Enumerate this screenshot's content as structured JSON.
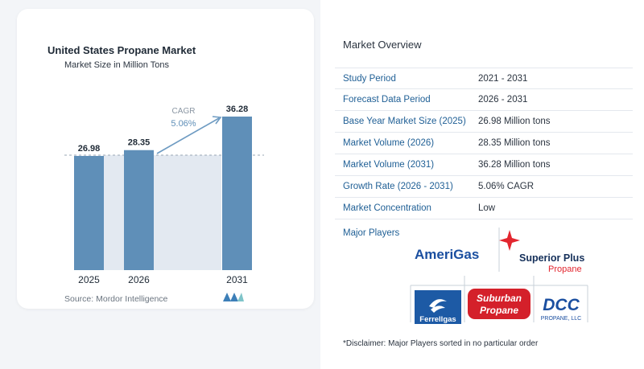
{
  "chart_data": {
    "type": "bar",
    "title": "United States Propane Market",
    "subtitle": "Market Size in Million Tons",
    "categories": [
      "2025",
      "2026",
      "2031"
    ],
    "values": [
      26.98,
      28.35,
      36.28
    ],
    "value_labels": [
      "26.98",
      "28.35",
      "36.28"
    ],
    "cagr_label": "CAGR",
    "cagr_value": "5.06%",
    "bar_color": "#5f8fb8",
    "shade_color": "#e3e9f1",
    "ylim": [
      0,
      40
    ],
    "grid": false
  },
  "source": "Source:  Mordor Intelligence",
  "overview": {
    "title": "Market Overview",
    "rows": [
      {
        "label": "Study Period",
        "value": "2021 - 2031"
      },
      {
        "label": "Forecast Data Period",
        "value": "2026 - 2031"
      },
      {
        "label": "Base Year Market Size (2025)",
        "value": "26.98 Million tons"
      },
      {
        "label": "Market Volume (2026)",
        "value": "28.35 Million tons"
      },
      {
        "label": "Market Volume (2031)",
        "value": "36.28 Million tons"
      },
      {
        "label": "Growth Rate (2026 - 2031)",
        "value": "5.06% CAGR"
      },
      {
        "label": "Market Concentration",
        "value": "Low"
      }
    ],
    "players_label": "Major Players",
    "players": {
      "amerigas": "AmeriGas",
      "superior_1": "Superior Plus",
      "superior_2": "Propane",
      "ferrellgas": "Ferrellgas",
      "suburban_1": "Suburban",
      "suburban_2": "Propane",
      "dcc_1": "DCC",
      "dcc_2": "PROPANE, LLC"
    },
    "disclaimer": "*Disclaimer: Major Players sorted in no particular order"
  }
}
